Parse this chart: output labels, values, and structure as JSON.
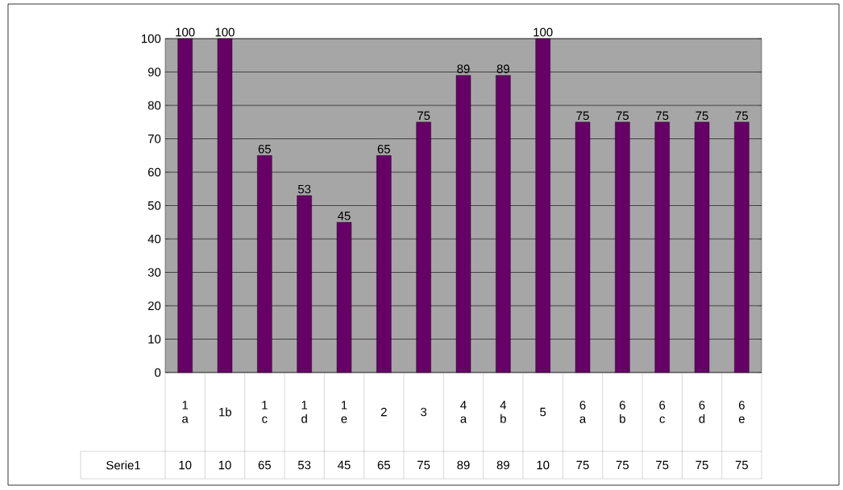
{
  "chart_data": {
    "type": "bar",
    "categories": [
      "1 a",
      "1b",
      "1 c",
      "1 d",
      "1 e",
      "2",
      "3",
      "4 a",
      "4 b",
      "5",
      "6 a",
      "6 b",
      "6 c",
      "6 d",
      "6 e"
    ],
    "series": [
      {
        "name": "Serie1",
        "color": "#660066",
        "values": [
          100,
          100,
          65,
          53,
          45,
          65,
          75,
          89,
          89,
          100,
          75,
          75,
          75,
          75,
          75
        ],
        "value_labels": [
          "100",
          "100",
          "65",
          "53",
          "45",
          "65",
          "75",
          "89",
          "89",
          "100",
          "75",
          "75",
          "75",
          "75",
          "75"
        ]
      }
    ],
    "annotations": [
      "10",
      "10",
      "65",
      "53",
      "45",
      "65",
      "75",
      "89",
      "89",
      "10",
      "75",
      "75",
      "75",
      "75",
      "75"
    ],
    "ylim": [
      0,
      100
    ],
    "yticks": [
      0,
      10,
      20,
      30,
      40,
      50,
      60,
      70,
      80,
      90,
      100
    ],
    "grid": "y",
    "legend": false
  }
}
